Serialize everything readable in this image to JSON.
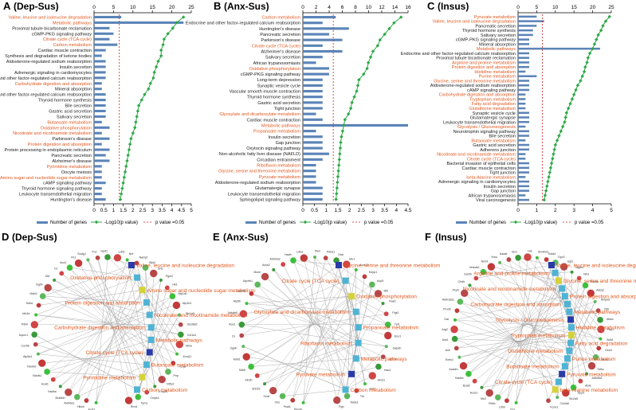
{
  "colors": {
    "metabolic": "#e2571c",
    "other": "#1a1a1a",
    "bar": "#5b84b8",
    "line": "#2ca845",
    "threshold": "#cc2222"
  },
  "legend": {
    "genes": "Number of genes",
    "logp": "-Log10(p value)",
    "threshold": "p value =0.05"
  },
  "chart_data": [
    {
      "panel": "A",
      "title": "(Dep-Sus)",
      "type": "bar",
      "top_ticks": [
        "0",
        "5",
        "10",
        "15",
        "20",
        "25"
      ],
      "bottom_ticks": [
        "0",
        "0.5",
        "1",
        "1.5",
        "2",
        "2.5",
        "3",
        "3.5",
        "4",
        "4.5",
        "5"
      ],
      "xlim_top": [
        0,
        25
      ],
      "xlim_bottom": [
        0,
        5
      ],
      "threshold_bottom": 1.3,
      "categories": [
        "Valine, leucine and isoleucine degradation",
        "Metabolic pathways",
        "Proximal tubule bicarbonate reclamation",
        "cGMP-PKG signaling pathway",
        "Citrate cycle (TCA cycle)",
        "Carbon metabolism",
        "Cardiac muscle contraction",
        "Synthesis and degradation of ketone bodies",
        "Aldosterone-regulated sodium reabsorption",
        "Insulin secretion",
        "Adrenergic signaling in cardiomyocytes",
        "Endocrine and other factor-regulated calcium reabsorption",
        "Carbohydrate digestion and absorption",
        "Mineral absorption",
        "Endocrine and other factor-regulated calcium reabsorption",
        "Thyroid hormone synthesis",
        "Bile secretion",
        "Gastric acid secretion",
        "Salivary secretion",
        "Butanoate metabolism",
        "Oxidative phosphorylation",
        "Nicotinate and nicotinamide metabolism",
        "Parkinson's disease",
        "Protein digestion and absorption",
        "Protein processing in endoplasmic reticulum",
        "Pancreatic secretion",
        "Alzheimer's disease",
        "Pyrimidine metabolism",
        "Oocyte meiosis",
        "Amino sugar and nucleotide sugar metabolism",
        "cAMP signaling pathway",
        "Thyroid hormone signaling pathway",
        "Leukocyte transendothelial migration",
        "Huntington's disease"
      ],
      "metabolic": [
        1,
        1,
        0,
        0,
        1,
        1,
        0,
        0,
        0,
        0,
        0,
        0,
        1,
        0,
        0,
        0,
        0,
        0,
        0,
        1,
        1,
        1,
        0,
        1,
        0,
        0,
        0,
        1,
        0,
        1,
        0,
        0,
        0,
        0
      ],
      "values": [
        7,
        23,
        4,
        5,
        4,
        6,
        3,
        2,
        3,
        3,
        3,
        3,
        2,
        2,
        3,
        3,
        3,
        3,
        3,
        2,
        4,
        2,
        4,
        2,
        4,
        3,
        4,
        2,
        2,
        2,
        3,
        2,
        2,
        3
      ],
      "logp": [
        4.6,
        4.25,
        4.05,
        3.8,
        3.6,
        3.55,
        3.45,
        3.45,
        3.3,
        3.2,
        3.1,
        3.05,
        2.9,
        2.8,
        2.6,
        2.45,
        2.3,
        2.25,
        2.2,
        2.15,
        2.1,
        2.0,
        1.9,
        1.85,
        1.8,
        1.75,
        1.7,
        1.65,
        1.6,
        1.55,
        1.5,
        1.45,
        1.4,
        1.35
      ]
    },
    {
      "panel": "B",
      "title": "(Anx-Sus)",
      "type": "bar",
      "top_ticks": [
        "0",
        "2",
        "4",
        "6",
        "8",
        "10",
        "12",
        "14",
        "16"
      ],
      "bottom_ticks": [
        "0",
        "0.5",
        "1",
        "1.5",
        "2",
        "2.5",
        "3",
        "3.5",
        "4",
        "4.5"
      ],
      "xlim_top": [
        0,
        16
      ],
      "xlim_bottom": [
        0,
        4.5
      ],
      "threshold_bottom": 1.3,
      "categories": [
        "Carbon metabolism",
        "Endocrine and other factor-regulated calcium reabsorption",
        "Huntington's disease",
        "Pancreatic secretion",
        "Parkinson's disease",
        "Citrate cycle (TCA cycle)",
        "Alzheimer's disease",
        "Salivary secretion",
        "African trypanosomiasis",
        "Oxidative phosphorylation",
        "cGMP-PKG signaling pathway",
        "Long-term depression",
        "Synaptic vesicle cycle",
        "Vascular smooth muscle contraction",
        "Thyroid hormone synthesis",
        "Gastric acid secretion",
        "Tight junction",
        "Glyoxylate and dicarboxylate metabolism",
        "Cardiac muscle contraction",
        "Metabolic pathways",
        "Propanoate metabolism",
        "Insulin secretion",
        "Gap junction",
        "Oxytocin signaling pathway",
        "Non-alcoholic fatty liver disease (NAFLD)",
        "Circadian entrainment",
        "Riboflavin metabolism",
        "Glycine, serine and threonine metabolism",
        "Pyruvate metabolism",
        "Aldosterone-regulated sodium reabsorption",
        "Glutamatergic synapse",
        "Leukocyte transendothelial migration",
        "Sphingolipid signaling pathway"
      ],
      "metabolic": [
        1,
        0,
        0,
        0,
        0,
        1,
        0,
        0,
        0,
        1,
        0,
        0,
        0,
        0,
        0,
        0,
        0,
        1,
        0,
        1,
        1,
        0,
        0,
        0,
        0,
        0,
        1,
        1,
        1,
        0,
        0,
        0,
        0
      ],
      "values": [
        5,
        3,
        7,
        4,
        6,
        3,
        6,
        3,
        2,
        4,
        4,
        3,
        3,
        3,
        3,
        3,
        3,
        2,
        3,
        16,
        2,
        3,
        3,
        3,
        4,
        3,
        2,
        2,
        2,
        2,
        3,
        3,
        3
      ],
      "logp": [
        4.2,
        3.9,
        3.7,
        3.5,
        3.3,
        3.2,
        3.0,
        2.9,
        2.8,
        2.75,
        2.6,
        2.4,
        2.35,
        2.3,
        2.2,
        2.1,
        2.05,
        1.95,
        1.8,
        1.75,
        1.7,
        1.65,
        1.62,
        1.6,
        1.58,
        1.56,
        1.54,
        1.52,
        1.5,
        1.48,
        1.46,
        1.44,
        1.42
      ]
    },
    {
      "panel": "C",
      "title": "(Insus)",
      "type": "bar",
      "top_ticks": [
        "0",
        "5",
        "10",
        "15",
        "20",
        "25"
      ],
      "bottom_ticks": [
        "0",
        "1",
        "2",
        "3",
        "4",
        "5"
      ],
      "xlim_top": [
        0,
        25
      ],
      "xlim_bottom": [
        0,
        5
      ],
      "threshold_bottom": 1.3,
      "categories": [
        "Pyruvate metabolism",
        "Valine, leucine and isoleucine degradation",
        "Pancreatic secretion",
        "Thyroid hormone synthesis",
        "Salivary secretion",
        "cGMP-PKG signaling pathway",
        "Mineral absorption",
        "Metabolic pathways",
        "Endocrine and other factor-regulated calcium reabsorption",
        "Proximal tubule bicarbonate reclamation",
        "Arginine and proline metabolism",
        "Protein digestion and absorption",
        "Histidine metabolism",
        "Purine metabolism",
        "Glycine, serine and threonine metabolism",
        "Aldosterone-regulated sodium reabsorption",
        "cAMP signaling pathway",
        "Carbohydrate digestion and absorption",
        "Tryptophan metabolism",
        "Fatty acid degradation",
        "Glutathione metabolism",
        "Synaptic vesicle cycle",
        "Glutamatergic synapse",
        "Leukocyte transendothelial migration",
        "Glycolysis / Gluconeogenesis",
        "Neurotrophin signaling pathway",
        "Bile secretion",
        "Butanoate metabolism",
        "Gastric acid secretion",
        "Adherens junction",
        "Nicotinate and nicotinamide metabolism",
        "Citrate cycle (TCA cycle)",
        "Bacterial invasion of epithelial cells",
        "Cardiac muscle contraction",
        "Tight junction",
        "beta-Alanine metabolism",
        "Adrenergic signaling in cardiomyocytes",
        "Insulin secretion",
        "Gap junction",
        "African trypanosomiasis",
        "Viral carcinogenesis"
      ],
      "metabolic": [
        1,
        1,
        0,
        0,
        0,
        0,
        0,
        1,
        0,
        0,
        1,
        1,
        1,
        1,
        1,
        0,
        0,
        1,
        1,
        1,
        1,
        0,
        0,
        0,
        1,
        0,
        0,
        1,
        0,
        0,
        1,
        1,
        0,
        0,
        0,
        1,
        0,
        0,
        0,
        0,
        0
      ],
      "values": [
        5,
        7,
        5,
        4,
        4,
        3,
        3,
        22,
        3,
        3,
        3,
        3,
        2,
        5,
        3,
        3,
        3,
        2,
        2,
        2,
        2,
        3,
        3,
        3,
        2,
        3,
        3,
        2,
        3,
        3,
        2,
        2,
        3,
        3,
        3,
        2,
        3,
        3,
        3,
        2,
        3
      ],
      "logp": [
        4.9,
        4.7,
        4.55,
        4.45,
        4.3,
        4.2,
        4.1,
        4.0,
        3.85,
        3.75,
        3.7,
        3.6,
        3.55,
        3.45,
        3.35,
        3.2,
        3.1,
        3.0,
        2.9,
        2.8,
        2.7,
        2.6,
        2.55,
        2.5,
        2.4,
        2.3,
        2.2,
        2.1,
        2.0,
        1.95,
        1.9,
        1.85,
        1.8,
        1.75,
        1.7,
        1.65,
        1.6,
        1.55,
        1.5,
        1.45,
        1.4
      ]
    },
    {
      "panel": "D",
      "title": "(Dep-Sus)",
      "type": "network",
      "pathways": [
        "Valine, leucine and isoleucine degradation",
        "Oxidative phosphorylation",
        "Amino sugar and nucleotide sugar metabolism",
        "Protein digestion and absorption",
        "Nicotinate and nicotinamide metabolism",
        "Carbohydrate digestion and absorption",
        "Metabolic pathways",
        "Citrate cycle (TCA cycle)",
        "Butanoate metabolism",
        "Pyrimidine metabolism",
        "Carbon metabolism"
      ],
      "genes": [
        "Acsl1",
        "Hibch",
        "Aldh6a1",
        "Bckdhb",
        "Hadha",
        "Acat1",
        "Ndufs1",
        "Ndufv2",
        "Atp5a1",
        "Cox5b",
        "Uqcrc1",
        "Pdhb",
        "Idh3a",
        "Sdha",
        "Mdh2",
        "Ogdh",
        "Dld",
        "Cs",
        "Aco2",
        "Fh1",
        "Suclg1",
        "Pcx",
        "Gpd1",
        "Ldhb",
        "Nnt",
        "Nampt",
        "Gfpt1",
        "Gne",
        "Pgm2",
        "Hk1",
        "Atp1a1",
        "Atp1b1",
        "Slc1a3",
        "Slc38a2",
        "Col1a1",
        "Mme",
        "Kcnj11",
        "Kcnj8",
        "Pnp",
        "Nt5c2",
        "Entpd1",
        "Cmpk1",
        "Tyms",
        "Rrm1"
      ]
    },
    {
      "panel": "E",
      "title": "(Anx-Sus)",
      "type": "network",
      "pathways": [
        "Glycine, serine and threonine metabolism",
        "Citrate cycle (TCA cycle)",
        "Oxidative phosphorylation",
        "Glyoxylate and dicarboxylate metabolism",
        "Propanoate metabolism",
        "Riboflavin metabolism",
        "Metabolic pathways",
        "Pyruvate metabolism",
        "Carbon metabolism"
      ],
      "genes": [
        "Phgdh",
        "Psat1",
        "Cbs",
        "Gcat",
        "Shmt2",
        "Idh3b",
        "Sdhb",
        "Mdh1",
        "Ogdh",
        "Cs",
        "Aco2",
        "Ndufa9",
        "Atp5b",
        "Cox4i1",
        "Uqcrfs1",
        "Mcee",
        "Acss2",
        "Aldh3a2",
        "Hadh",
        "Ldha",
        "Pkm",
        "Pdha1",
        "Dlat",
        "Me1",
        "Acot12",
        "Enpp1",
        "Acp5",
        "Rfk",
        "Flad1",
        "Pgk1",
        "Tpi1",
        "Eno1",
        "Gapdh",
        "Grhpr",
        "Hao1",
        "Glud1",
        "Got2",
        "Tkt",
        "Taldo1",
        "Pgd"
      ]
    },
    {
      "panel": "F",
      "title": "(Insus)",
      "type": "network",
      "pathways": [
        "Valine, leucine and isoleucine degradation",
        "Arginine and proline metabolism",
        "Glycine, serine and threonine metabolism",
        "Nicotinate and nicotinamide metabolism",
        "Protein digestion and absorption",
        "Carbohydrate digestion and absorption",
        "Metabolic pathways",
        "Glycolysis / Gluconeogenesis",
        "Histidine metabolism",
        "Tryptophan metabolism",
        "Fatty acid degradation",
        "Glutathione metabolism",
        "Purine metabolism",
        "Butanoate metabolism",
        "Pyruvate metabolism",
        "Citrate cycle (TCA cycle)",
        "beta-Alanine metabolism"
      ],
      "genes": [
        "Pcx",
        "Ldhb",
        "Pdhb",
        "Me2",
        "Acss1",
        "Bcat2",
        "Hadhb",
        "Acadm",
        "Echs1",
        "Auh",
        "Ass1",
        "Arg2",
        "Oat",
        "Prodh",
        "Aldh18a1",
        "Psph",
        "Chdh",
        "Sardh",
        "Nmnat2",
        "Nnmt",
        "Kmo",
        "Aadat",
        "Ido1",
        "Hal",
        "Amdhd1",
        "Gsta4",
        "Gpx3",
        "Ggt1",
        "Mgst1",
        "Idh2",
        "Pde4b",
        "Adcy2",
        "Ampd3",
        "Pklr",
        "Aldoc",
        "Fbp2",
        "Bdh1",
        "Oxct1",
        "Mdh2",
        "Sdhc",
        "Aldh9a1",
        "Abat",
        "Dpyd",
        "Slc2a5",
        "Col4a5",
        "Kcne1"
      ]
    }
  ]
}
